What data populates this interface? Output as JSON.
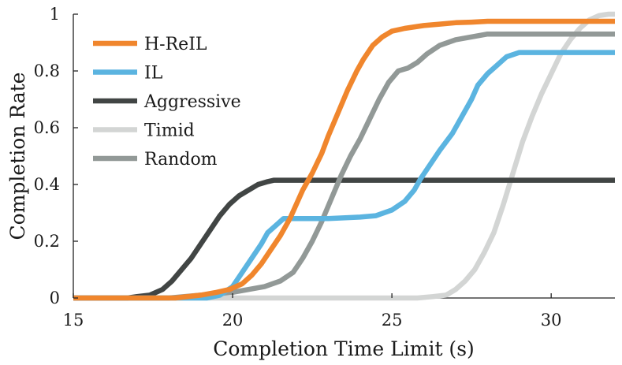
{
  "chart_data": {
    "type": "line",
    "title": "",
    "xlabel": "Completion Time Limit (s)",
    "ylabel": "Completion Rate",
    "xlim": [
      15,
      32
    ],
    "ylim": [
      0,
      1
    ],
    "xticks": [
      15,
      20,
      25,
      30
    ],
    "xtick_labels": [
      "15",
      "20",
      "25",
      "30"
    ],
    "yticks": [
      0,
      0.2,
      0.4,
      0.6,
      0.8,
      1
    ],
    "ytick_labels": [
      "0",
      "0.2",
      "0.4",
      "0.6",
      "0.8",
      "1"
    ],
    "grid": false,
    "legend_position": "top-left",
    "series": [
      {
        "name": "H-ReIL",
        "color": "#f0862d",
        "x": [
          15,
          18.2,
          19,
          19.5,
          19.9,
          20.3,
          20.6,
          20.9,
          21.2,
          21.5,
          21.8,
          22.0,
          22.2,
          22.5,
          22.8,
          23.0,
          23.3,
          23.6,
          23.9,
          24.1,
          24.4,
          24.7,
          25.0,
          25.4,
          26.0,
          26.5,
          27.0,
          27.5,
          28.0,
          29.0,
          30.0,
          31.0,
          32.0
        ],
        "y": [
          0,
          0,
          0.01,
          0.02,
          0.03,
          0.05,
          0.08,
          0.12,
          0.17,
          0.22,
          0.28,
          0.33,
          0.38,
          0.44,
          0.51,
          0.57,
          0.65,
          0.73,
          0.8,
          0.84,
          0.89,
          0.92,
          0.94,
          0.95,
          0.96,
          0.965,
          0.97,
          0.972,
          0.975,
          0.975,
          0.975,
          0.975,
          0.975
        ]
      },
      {
        "name": "IL",
        "color": "#5bb4e0",
        "x": [
          15,
          19.2,
          19.6,
          20.0,
          20.3,
          20.6,
          20.9,
          21.1,
          21.4,
          21.6,
          22.0,
          23.0,
          24.0,
          24.5,
          25.0,
          25.4,
          25.7,
          25.9,
          26.2,
          26.5,
          26.9,
          27.2,
          27.5,
          27.7,
          28.0,
          28.3,
          28.6,
          29.0,
          30.0,
          32.0
        ],
        "y": [
          0,
          0,
          0.01,
          0.04,
          0.09,
          0.14,
          0.19,
          0.23,
          0.26,
          0.28,
          0.28,
          0.28,
          0.285,
          0.29,
          0.31,
          0.34,
          0.38,
          0.42,
          0.47,
          0.52,
          0.58,
          0.64,
          0.7,
          0.75,
          0.79,
          0.82,
          0.85,
          0.865,
          0.865,
          0.865
        ]
      },
      {
        "name": "Aggressive",
        "color": "#414544",
        "x": [
          15,
          16.7,
          17.0,
          17.4,
          17.8,
          18.1,
          18.4,
          18.7,
          19.0,
          19.3,
          19.6,
          19.9,
          20.2,
          20.5,
          20.8,
          21.1,
          21.3,
          22.0,
          24.0,
          26.0,
          28.0,
          30.0,
          32.0
        ],
        "y": [
          0,
          0,
          0.005,
          0.01,
          0.03,
          0.06,
          0.1,
          0.14,
          0.19,
          0.24,
          0.29,
          0.33,
          0.36,
          0.38,
          0.4,
          0.41,
          0.415,
          0.415,
          0.415,
          0.415,
          0.415,
          0.415,
          0.415
        ]
      },
      {
        "name": "Timid",
        "color": "#d3d5d4",
        "x": [
          15,
          25.0,
          25.8,
          26.3,
          26.7,
          27.0,
          27.3,
          27.6,
          27.9,
          28.2,
          28.5,
          28.8,
          29.1,
          29.4,
          29.7,
          30.0,
          30.3,
          30.6,
          30.9,
          31.2,
          31.5,
          31.8,
          32.0
        ],
        "y": [
          0,
          0,
          0,
          0.005,
          0.01,
          0.03,
          0.06,
          0.1,
          0.16,
          0.23,
          0.33,
          0.44,
          0.55,
          0.64,
          0.72,
          0.79,
          0.86,
          0.91,
          0.95,
          0.98,
          0.995,
          1.0,
          1.0
        ]
      },
      {
        "name": "Random",
        "color": "#929997",
        "x": [
          15,
          18.0,
          19.0,
          20.0,
          20.5,
          21.0,
          21.5,
          21.9,
          22.2,
          22.5,
          22.8,
          23.1,
          23.4,
          23.7,
          24.0,
          24.3,
          24.6,
          24.9,
          25.2,
          25.5,
          25.8,
          26.1,
          26.5,
          27.0,
          27.5,
          28.0,
          29.0,
          30.0,
          32.0
        ],
        "y": [
          0,
          0,
          0.01,
          0.02,
          0.03,
          0.04,
          0.06,
          0.09,
          0.14,
          0.2,
          0.27,
          0.35,
          0.43,
          0.5,
          0.56,
          0.63,
          0.7,
          0.76,
          0.8,
          0.81,
          0.83,
          0.86,
          0.89,
          0.91,
          0.92,
          0.93,
          0.93,
          0.93,
          0.93
        ]
      }
    ]
  }
}
